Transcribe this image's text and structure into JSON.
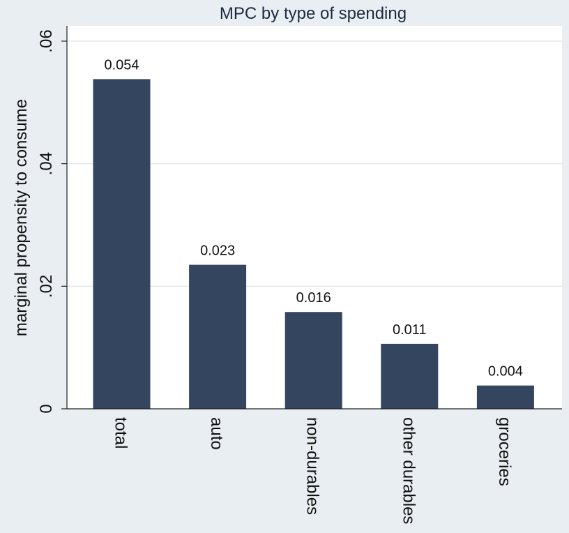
{
  "colors": {
    "background": "#e8eef1",
    "plot_background": "#ffffff",
    "bar": "#34465f",
    "grid": "#e4e9ec",
    "axis": "#222222"
  },
  "chart_data": {
    "type": "bar",
    "title": "MPC by type of spending",
    "xlabel": "",
    "ylabel": "marginal propensity to consume",
    "categories": [
      "total",
      "auto",
      "non-durables",
      "other durables",
      "groceries"
    ],
    "values": [
      0.0538,
      0.0235,
      0.0158,
      0.0106,
      0.0038
    ],
    "data_labels": [
      "0.054",
      "0.023",
      "0.016",
      "0.011",
      "0.004"
    ],
    "ylim": [
      0,
      0.0625
    ],
    "yticks": [
      0,
      0.02,
      0.04,
      0.06
    ],
    "ytick_labels": [
      "0",
      ".02",
      ".04",
      ".06"
    ],
    "grid": true,
    "legend": "none"
  }
}
